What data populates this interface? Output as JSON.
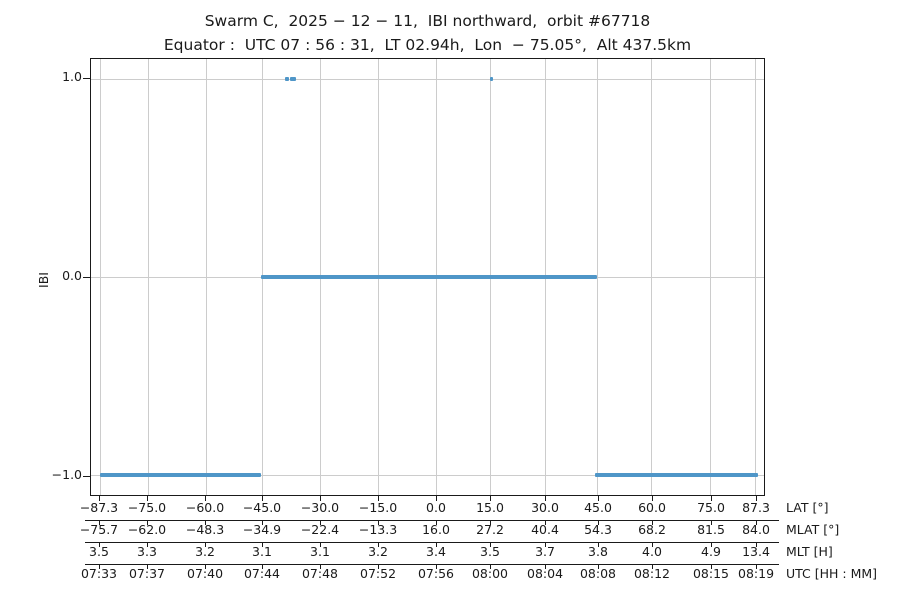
{
  "chart_data": {
    "type": "line",
    "title": "Swarm C,  2025 − 12 − 11,  IBI northward,  orbit #67718",
    "subtitle": "Equator :  UTC 07 : 56 : 31,  LT 02.94h,  Lon  − 75.05°,  Alt 437.5km",
    "ylabel": "IBI",
    "ylim": [
      -1.1,
      1.1
    ],
    "grid": true,
    "legend_position": "none",
    "line_color": "#4f96c8",
    "grid_color": "#cccccc",
    "spine_color": "#1a1a1a",
    "yticks": [
      {
        "value": 1.0,
        "label": "1.0"
      },
      {
        "value": 0.0,
        "label": "0.0"
      },
      {
        "value": -1.0,
        "label": "−1.0"
      }
    ],
    "tick_positions_pct": [
      1.33,
      8.44,
      17.04,
      25.48,
      34.07,
      42.67,
      51.26,
      59.26,
      67.41,
      75.26,
      83.26,
      92.0,
      98.67
    ],
    "axis_rows": [
      {
        "label": "LAT [°]",
        "ticks": [
          "−87.3",
          "−75.0",
          "−60.0",
          "−45.0",
          "−30.0",
          "−15.0",
          "0.0",
          "15.0",
          "30.0",
          "45.0",
          "60.0",
          "75.0",
          "87.3"
        ]
      },
      {
        "label": "MLAT [°]",
        "ticks": [
          "−75.7",
          "−62.0",
          "−48.3",
          "−34.9",
          "−22.4",
          "−13.3",
          "16.0",
          "27.2",
          "40.4",
          "54.3",
          "68.2",
          "81.5",
          "84.0"
        ]
      },
      {
        "label": "MLT [H]",
        "ticks": [
          "3.5",
          "3.3",
          "3.2",
          "3.1",
          "3.1",
          "3.2",
          "3.4",
          "3.5",
          "3.7",
          "3.8",
          "4.0",
          "4.9",
          "13.4"
        ]
      },
      {
        "label": "UTC [HH : MM]",
        "ticks": [
          "07:33",
          "07:37",
          "07:40",
          "07:44",
          "07:48",
          "07:52",
          "07:56",
          "08:00",
          "08:04",
          "08:08",
          "08:12",
          "08:15",
          "08:19"
        ]
      }
    ],
    "series": [
      {
        "name": "IBI",
        "segments": [
          {
            "y": -1,
            "x0_pct": 1.33,
            "x1_pct": 25.33,
            "lat_start": -87.3,
            "lat_end": -45.0,
            "utc_start": "07:33",
            "utc_end": "07:44"
          },
          {
            "y": 0,
            "x0_pct": 25.33,
            "x1_pct": 75.26,
            "lat_start": -45.0,
            "lat_end": 45.0,
            "utc_start": "07:44",
            "utc_end": "08:08"
          },
          {
            "y": -1,
            "x0_pct": 74.96,
            "x1_pct": 99.11,
            "lat_start": 45.0,
            "lat_end": 87.3,
            "utc_start": "08:08",
            "utc_end": "08:19"
          },
          {
            "y": 1,
            "x0_pct": 28.81,
            "x1_pct": 29.41,
            "lat_start": -39.2,
            "lat_end": -38.3
          },
          {
            "y": 1,
            "x0_pct": 29.63,
            "x1_pct": 30.52,
            "lat_start": -37.8,
            "lat_end": -36.2
          },
          {
            "y": 1,
            "x0_pct": 59.33,
            "x1_pct": 59.7,
            "lat_start": 15.1,
            "lat_end": 15.8
          }
        ]
      }
    ]
  }
}
